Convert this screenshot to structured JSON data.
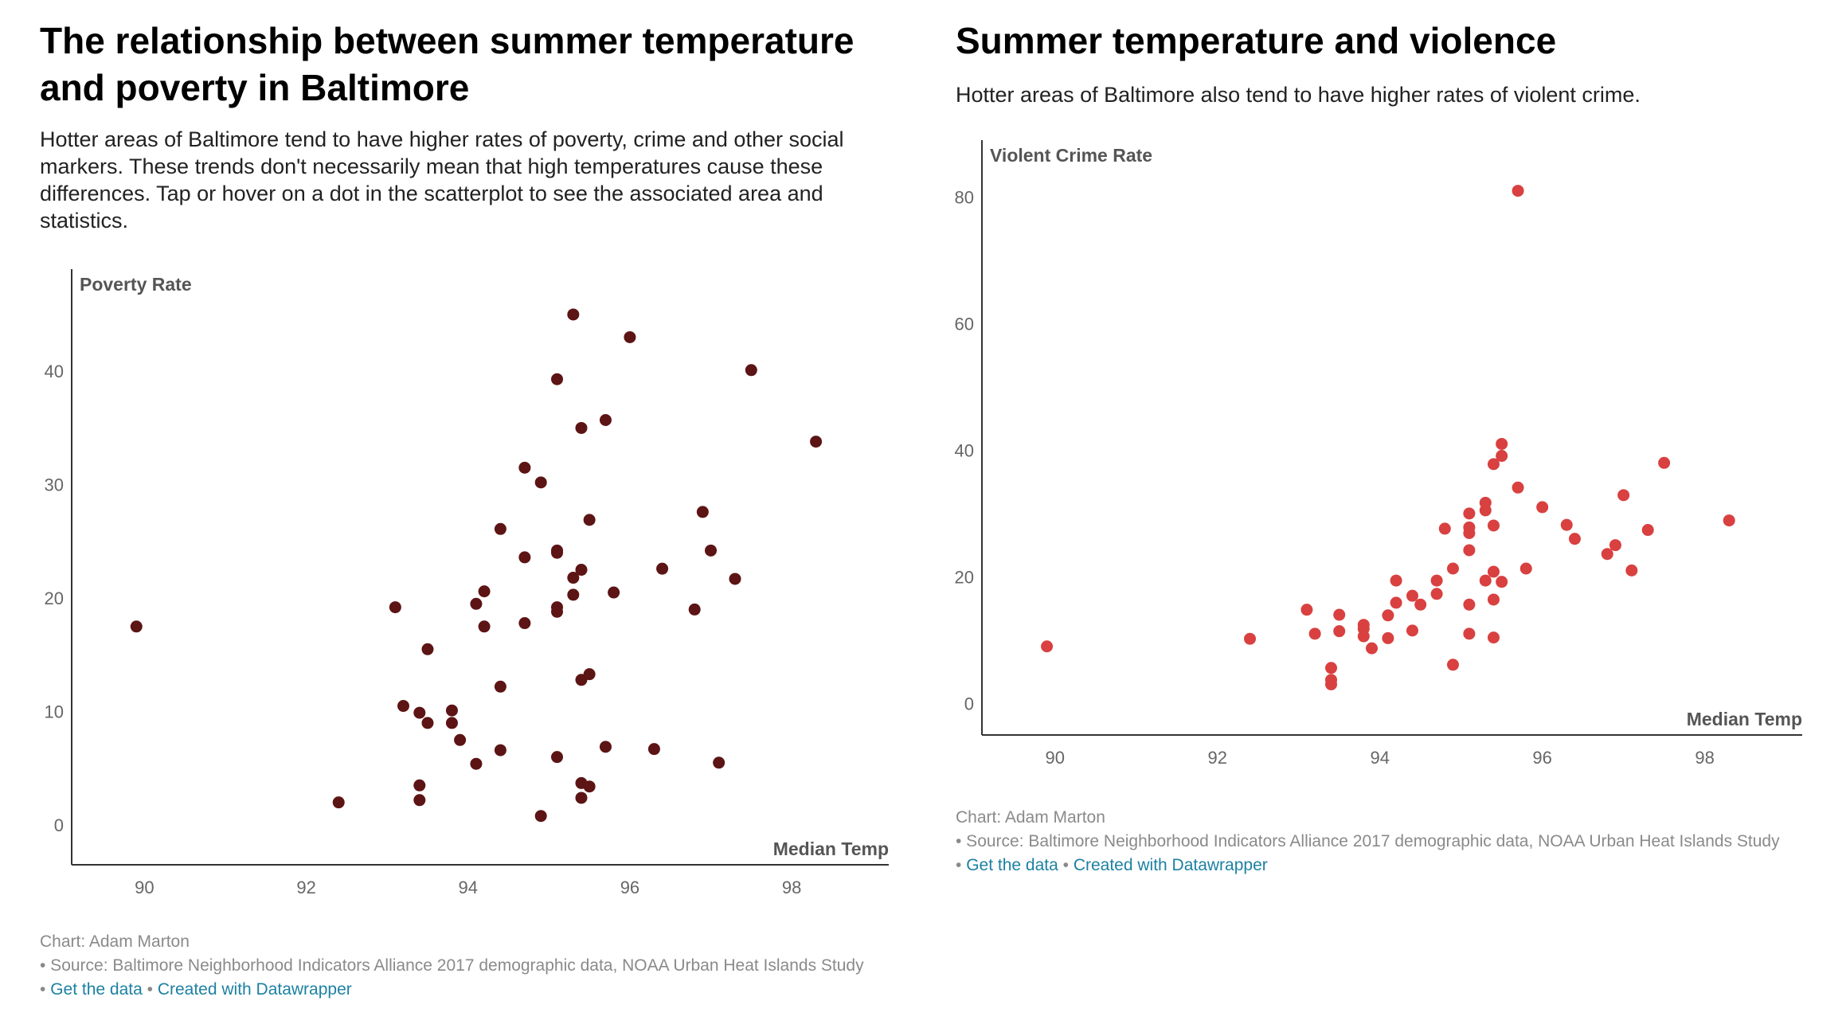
{
  "left": {
    "title": "The relationship between summer temperature and poverty in Baltimore",
    "description": "Hotter areas of Baltimore tend to have higher rates of poverty, crime and other social markers. These trends don't necessarily mean that high temperatures cause these differences. Tap or hover on a dot in the scatterplot to see the associated area and statistics.",
    "footer": {
      "credit": "Chart: Adam Marton",
      "source": "• Source: Baltimore Neighborhood Indicators Alliance 2017 demographic data, NOAA Urban Heat Islands Study",
      "separator1": "• ",
      "get_data": "Get the data",
      "separator2": " • ",
      "created_with": "Created with Datawrapper"
    }
  },
  "right": {
    "title": "Summer temperature and violence",
    "description": "Hotter areas of Baltimore also tend to have higher rates of violent crime.",
    "footer": {
      "credit": "Chart: Adam Marton",
      "source": "• Source: Baltimore Neighborhood Indicators Alliance 2017 demographic data, NOAA Urban Heat Islands Study",
      "separator1": "• ",
      "get_data": "Get the data",
      "separator2": " • ",
      "created_with": "Created with Datawrapper"
    }
  },
  "chart_data": [
    {
      "type": "scatter",
      "title": "The relationship between summer temperature and poverty in Baltimore",
      "xlabel": "Median Temp",
      "ylabel": "Poverty Rate",
      "xlim": [
        89.1,
        99.2
      ],
      "ylim": [
        -3.5,
        49
      ],
      "xticks": [
        90,
        92,
        94,
        96,
        98
      ],
      "yticks": [
        0,
        10,
        20,
        30,
        40
      ],
      "color": "#5c1414",
      "grid": false,
      "points": [
        {
          "x": 89.9,
          "y": 17.5
        },
        {
          "x": 92.4,
          "y": 2.0
        },
        {
          "x": 93.1,
          "y": 19.2
        },
        {
          "x": 93.2,
          "y": 10.5
        },
        {
          "x": 93.4,
          "y": 9.9
        },
        {
          "x": 93.4,
          "y": 3.5
        },
        {
          "x": 93.4,
          "y": 2.2
        },
        {
          "x": 93.5,
          "y": 15.5
        },
        {
          "x": 93.5,
          "y": 9.0
        },
        {
          "x": 93.8,
          "y": 10.1
        },
        {
          "x": 93.8,
          "y": 9.0
        },
        {
          "x": 93.9,
          "y": 7.5
        },
        {
          "x": 94.1,
          "y": 19.5
        },
        {
          "x": 94.1,
          "y": 5.4
        },
        {
          "x": 94.2,
          "y": 17.5
        },
        {
          "x": 94.2,
          "y": 20.6
        },
        {
          "x": 94.4,
          "y": 26.1
        },
        {
          "x": 94.4,
          "y": 6.6
        },
        {
          "x": 94.4,
          "y": 12.2
        },
        {
          "x": 94.7,
          "y": 31.5
        },
        {
          "x": 94.7,
          "y": 17.8
        },
        {
          "x": 94.7,
          "y": 23.6
        },
        {
          "x": 94.9,
          "y": 30.2
        },
        {
          "x": 94.9,
          "y": 0.8
        },
        {
          "x": 95.1,
          "y": 39.3
        },
        {
          "x": 95.1,
          "y": 24.2
        },
        {
          "x": 95.1,
          "y": 24.0
        },
        {
          "x": 95.1,
          "y": 19.2
        },
        {
          "x": 95.1,
          "y": 18.8
        },
        {
          "x": 95.1,
          "y": 6.0
        },
        {
          "x": 95.3,
          "y": 45.0
        },
        {
          "x": 95.3,
          "y": 21.8
        },
        {
          "x": 95.3,
          "y": 20.3
        },
        {
          "x": 95.4,
          "y": 12.8
        },
        {
          "x": 95.4,
          "y": 2.4
        },
        {
          "x": 95.4,
          "y": 3.7
        },
        {
          "x": 95.4,
          "y": 35.0
        },
        {
          "x": 95.4,
          "y": 22.5
        },
        {
          "x": 95.5,
          "y": 26.9
        },
        {
          "x": 95.5,
          "y": 13.3
        },
        {
          "x": 95.5,
          "y": 3.4
        },
        {
          "x": 95.7,
          "y": 35.7
        },
        {
          "x": 95.7,
          "y": 6.9
        },
        {
          "x": 95.8,
          "y": 20.5
        },
        {
          "x": 96.0,
          "y": 43.0
        },
        {
          "x": 96.3,
          "y": 6.7
        },
        {
          "x": 96.4,
          "y": 22.6
        },
        {
          "x": 96.8,
          "y": 19.0
        },
        {
          "x": 96.9,
          "y": 27.6
        },
        {
          "x": 97.0,
          "y": 24.2
        },
        {
          "x": 97.1,
          "y": 5.5
        },
        {
          "x": 97.3,
          "y": 21.7
        },
        {
          "x": 97.5,
          "y": 40.1
        },
        {
          "x": 98.3,
          "y": 33.8
        }
      ]
    },
    {
      "type": "scatter",
      "title": "Summer temperature and violence",
      "xlabel": "Median Temp",
      "ylabel": "Violent Crime Rate",
      "xlim": [
        89.1,
        99.2
      ],
      "ylim": [
        -5,
        89
      ],
      "xticks": [
        90,
        92,
        94,
        96,
        98
      ],
      "yticks": [
        0,
        20,
        40,
        60,
        80
      ],
      "color": "#d94040",
      "grid": false,
      "points": [
        {
          "x": 89.9,
          "y": 9.0
        },
        {
          "x": 92.4,
          "y": 10.2
        },
        {
          "x": 93.1,
          "y": 14.8
        },
        {
          "x": 93.2,
          "y": 11.0
        },
        {
          "x": 93.4,
          "y": 3.0
        },
        {
          "x": 93.4,
          "y": 3.7
        },
        {
          "x": 93.4,
          "y": 5.6
        },
        {
          "x": 93.5,
          "y": 14.0
        },
        {
          "x": 93.5,
          "y": 11.4
        },
        {
          "x": 93.8,
          "y": 12.4
        },
        {
          "x": 93.8,
          "y": 11.8
        },
        {
          "x": 93.8,
          "y": 10.6
        },
        {
          "x": 93.9,
          "y": 8.7
        },
        {
          "x": 94.1,
          "y": 13.9
        },
        {
          "x": 94.1,
          "y": 10.3
        },
        {
          "x": 94.2,
          "y": 15.9
        },
        {
          "x": 94.2,
          "y": 19.4
        },
        {
          "x": 94.4,
          "y": 11.5
        },
        {
          "x": 94.4,
          "y": 17.0
        },
        {
          "x": 94.5,
          "y": 15.6
        },
        {
          "x": 94.7,
          "y": 17.3
        },
        {
          "x": 94.7,
          "y": 19.4
        },
        {
          "x": 94.8,
          "y": 27.6
        },
        {
          "x": 94.9,
          "y": 21.3
        },
        {
          "x": 94.9,
          "y": 6.1
        },
        {
          "x": 95.1,
          "y": 30.0
        },
        {
          "x": 95.1,
          "y": 27.8
        },
        {
          "x": 95.1,
          "y": 26.9
        },
        {
          "x": 95.1,
          "y": 24.2
        },
        {
          "x": 95.1,
          "y": 15.6
        },
        {
          "x": 95.1,
          "y": 11.0
        },
        {
          "x": 95.3,
          "y": 31.7
        },
        {
          "x": 95.3,
          "y": 30.5
        },
        {
          "x": 95.3,
          "y": 19.4
        },
        {
          "x": 95.4,
          "y": 20.8
        },
        {
          "x": 95.4,
          "y": 16.4
        },
        {
          "x": 95.4,
          "y": 10.4
        },
        {
          "x": 95.4,
          "y": 28.1
        },
        {
          "x": 95.4,
          "y": 37.8
        },
        {
          "x": 95.5,
          "y": 41.0
        },
        {
          "x": 95.5,
          "y": 39.1
        },
        {
          "x": 95.5,
          "y": 19.2
        },
        {
          "x": 95.7,
          "y": 81.0
        },
        {
          "x": 95.7,
          "y": 34.1
        },
        {
          "x": 95.8,
          "y": 21.3
        },
        {
          "x": 96.0,
          "y": 31.0
        },
        {
          "x": 96.3,
          "y": 28.2
        },
        {
          "x": 96.4,
          "y": 26.0
        },
        {
          "x": 96.8,
          "y": 23.6
        },
        {
          "x": 96.9,
          "y": 25.0
        },
        {
          "x": 97.0,
          "y": 32.9
        },
        {
          "x": 97.1,
          "y": 21.0
        },
        {
          "x": 97.3,
          "y": 27.4
        },
        {
          "x": 97.5,
          "y": 38.0
        },
        {
          "x": 98.3,
          "y": 28.9
        }
      ]
    }
  ]
}
